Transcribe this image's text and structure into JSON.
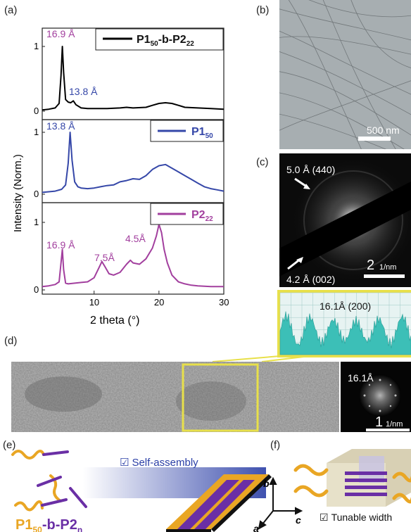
{
  "panel_labels": {
    "a": "(a)",
    "b": "(b)",
    "c": "(c)",
    "d": "(d)",
    "e": "(e)",
    "f": "(f)"
  },
  "colors": {
    "black_series": "#000000",
    "blue_series": "#3547a8",
    "magenta_series": "#a23f9e",
    "teal_profile": "#3cbfb7",
    "yellow_frame": "#e8e04a",
    "gold": "#e9a624",
    "purple": "#6a2fa5"
  },
  "panel_a": {
    "ylabel": "Intensity (Norm.)",
    "xlabel": "2 theta (°)",
    "x_ticks": [
      "10",
      "20",
      "30"
    ],
    "y_ticks": {
      "one": "1",
      "zero": "0"
    },
    "top_legend": {
      "prefix": "P1",
      "sub1": "50",
      "mid": "-b-P2",
      "sub2": "22"
    },
    "mid_legend": {
      "prefix": "P1",
      "sub1": "50"
    },
    "bot_legend": {
      "prefix": "P2",
      "sub1": "22"
    },
    "top_annotations": {
      "a1": "16.9 Å",
      "a2": "13.8 Å"
    },
    "mid_annotations": {
      "a1": "13.8 Å"
    },
    "bot_annotations": {
      "a1": "16.9 Å",
      "a2": "7.5Å",
      "a3": "4.5Å"
    }
  },
  "chart_data": {
    "type": "line",
    "xlabel": "2 theta (°)",
    "ylabel": "Intensity (Norm.)",
    "xlim": [
      2,
      30
    ],
    "series": [
      {
        "name": "P1₅₀-b-P2₂₂",
        "color": "#000000",
        "x": [
          2,
          3,
          4,
          4.6,
          4.9,
          5.1,
          5.3,
          5.6,
          6,
          6.4,
          6.8,
          7.2,
          8,
          9,
          10,
          12,
          14,
          15,
          16,
          18,
          19,
          20,
          21,
          22,
          23,
          24,
          26,
          28,
          30
        ],
        "y": [
          0.02,
          0.03,
          0.05,
          0.12,
          0.55,
          1.0,
          0.6,
          0.18,
          0.14,
          0.13,
          0.16,
          0.1,
          0.05,
          0.04,
          0.04,
          0.04,
          0.05,
          0.06,
          0.05,
          0.06,
          0.09,
          0.12,
          0.13,
          0.12,
          0.09,
          0.06,
          0.05,
          0.04,
          0.03
        ]
      },
      {
        "name": "P1₅₀",
        "color": "#3547a8",
        "x": [
          2,
          3,
          4,
          5,
          5.6,
          6,
          6.3,
          6.6,
          7,
          7.5,
          8,
          9,
          10,
          11,
          12,
          13,
          14,
          15,
          16,
          17,
          18,
          19,
          20,
          21,
          22,
          23,
          24,
          25,
          26,
          27,
          28,
          29,
          30
        ],
        "y": [
          0.03,
          0.04,
          0.05,
          0.08,
          0.15,
          0.5,
          1.0,
          0.55,
          0.2,
          0.12,
          0.1,
          0.09,
          0.1,
          0.12,
          0.14,
          0.15,
          0.2,
          0.22,
          0.25,
          0.24,
          0.3,
          0.4,
          0.46,
          0.48,
          0.42,
          0.36,
          0.3,
          0.24,
          0.18,
          0.12,
          0.09,
          0.07,
          0.05
        ]
      },
      {
        "name": "P2₂₂",
        "color": "#a23f9e",
        "x": [
          2,
          3,
          4,
          4.6,
          4.9,
          5.1,
          5.3,
          5.6,
          6,
          7,
          8,
          9,
          10,
          10.7,
          11.2,
          11.7,
          12.3,
          13,
          14,
          15,
          15.6,
          16,
          17,
          18,
          19,
          19.6,
          20,
          20.4,
          20.8,
          21.3,
          22,
          23,
          24,
          25,
          26,
          28,
          30
        ],
        "y": [
          0.05,
          0.06,
          0.08,
          0.12,
          0.4,
          0.6,
          0.3,
          0.1,
          0.09,
          0.1,
          0.11,
          0.12,
          0.18,
          0.32,
          0.42,
          0.34,
          0.24,
          0.22,
          0.26,
          0.38,
          0.44,
          0.4,
          0.38,
          0.46,
          0.62,
          0.8,
          0.97,
          0.85,
          0.6,
          0.4,
          0.22,
          0.12,
          0.09,
          0.07,
          0.06,
          0.05,
          0.05
        ]
      }
    ]
  },
  "panel_b": {
    "scale_text": "500 nm"
  },
  "panel_c": {
    "ann1": "5.0 Å (440)",
    "ann2": "4.2 Å (002)",
    "scale_main": "2",
    "scale_unit": "1/nm"
  },
  "panel_d": {
    "profile_title": "16.1Å (200)",
    "fft_label": "16.1Å",
    "scale_main": "1",
    "scale_unit": "1/nm"
  },
  "panel_e": {
    "selfassembly": "Self-assembly",
    "formula": {
      "p1": "P1",
      "s1": "50",
      "mid": "-b-P2",
      "s2": "n"
    }
  },
  "panel_f": {
    "tunable": "Tunable width",
    "axes": {
      "a": "a",
      "b": "b",
      "c": "c"
    }
  },
  "checkbox_glyph": "☑"
}
